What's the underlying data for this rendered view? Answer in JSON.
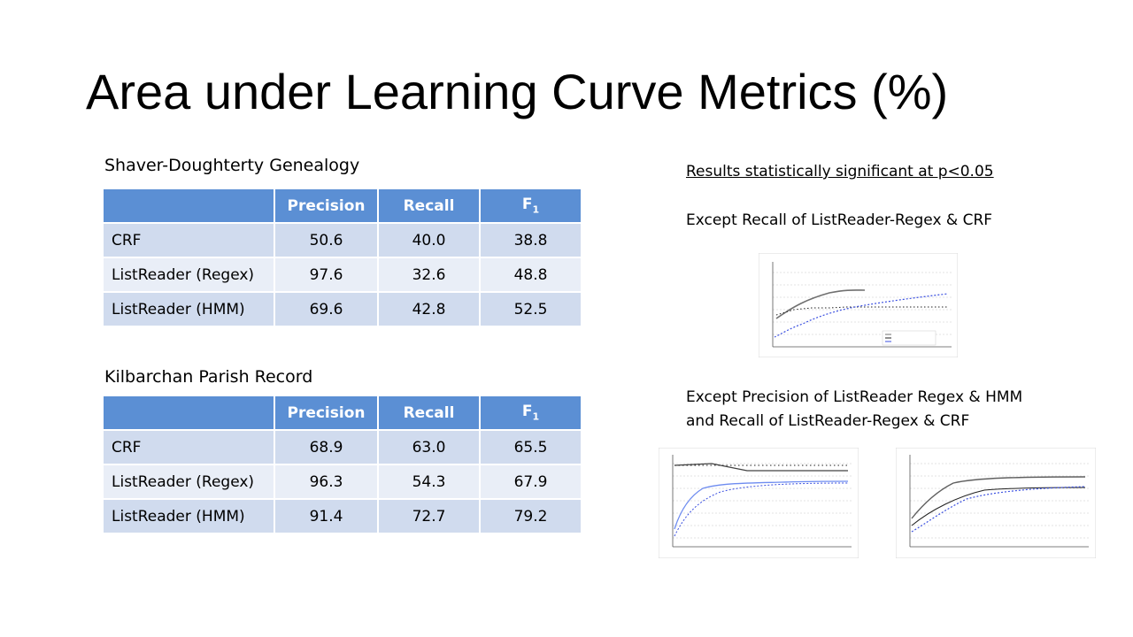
{
  "slide": {
    "title": "Area under Learning Curve Metrics (%)"
  },
  "table1": {
    "caption": "Shaver-Doughterty Genealogy",
    "headers": [
      "",
      "Precision",
      "Recall",
      "F",
      "1"
    ],
    "rows": [
      {
        "name": "CRF",
        "precision": "50.6",
        "recall": "40.0",
        "f1": "38.8"
      },
      {
        "name": "ListReader (Regex)",
        "precision": "97.6",
        "recall": "32.6",
        "f1": "48.8"
      },
      {
        "name": "ListReader (HMM)",
        "precision": "69.6",
        "recall": "42.8",
        "f1": "52.5"
      }
    ]
  },
  "table2": {
    "caption": "Kilbarchan Parish Record",
    "headers": [
      "",
      "Precision",
      "Recall",
      "F",
      "1"
    ],
    "rows": [
      {
        "name": "CRF",
        "precision": "68.9",
        "recall": "63.0",
        "f1": "65.5"
      },
      {
        "name": "ListReader (Regex)",
        "precision": "96.3",
        "recall": "54.3",
        "f1": "67.9"
      },
      {
        "name": "ListReader (HMM)",
        "precision": "91.4",
        "recall": "72.7",
        "f1": "79.2"
      }
    ]
  },
  "notes": {
    "significance": "Results statistically significant at p<0.05",
    "except1": "Except Recall of ListReader-Regex & CRF",
    "except2_line1": "Except Precision of ListReader Regex & HMM",
    "except2_line2": "and Recall of ListReader-Regex & CRF"
  },
  "colors": {
    "header": "#5b8fd4",
    "row_odd": "#d0dbee",
    "row_even": "#e9eef7",
    "series_blue": "#3a4fe0",
    "series_gray": "#707070",
    "series_black": "#202020"
  }
}
